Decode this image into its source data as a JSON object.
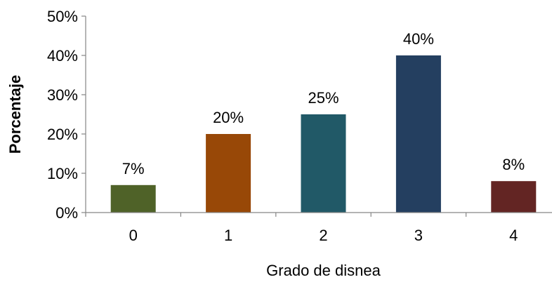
{
  "chart_data": {
    "type": "bar",
    "categories": [
      "0",
      "1",
      "2",
      "3",
      "4"
    ],
    "values": [
      7,
      20,
      25,
      40,
      8
    ],
    "data_labels": [
      "7%",
      "20%",
      "25%",
      "40%",
      "8%"
    ],
    "colors": [
      "#4f6228",
      "#984807",
      "#215967",
      "#243f60",
      "#632523"
    ],
    "title": "",
    "xlabel": "Grado de disnea",
    "ylabel": "Porcentaje",
    "ylim": [
      0,
      50
    ],
    "yticks": [
      0,
      10,
      20,
      30,
      40,
      50
    ],
    "ytick_labels": [
      "0%",
      "10%",
      "20%",
      "30%",
      "40%",
      "50%"
    ],
    "grid": false,
    "legend": "none",
    "axis_color": "#868686"
  }
}
